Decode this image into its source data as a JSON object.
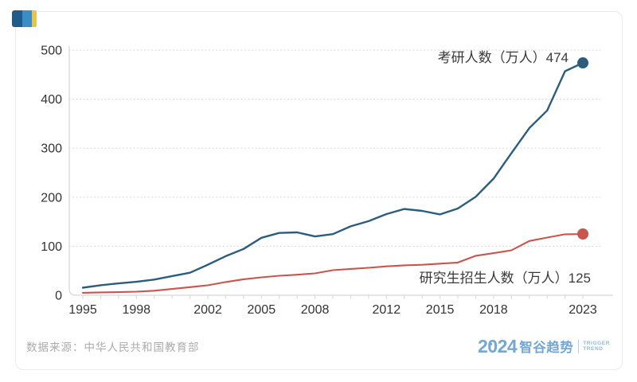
{
  "logo": {
    "square_colors": [
      "#1d5c8d",
      "#3b8ec5",
      "#e6c44c"
    ]
  },
  "chart_data": {
    "type": "line",
    "title": "",
    "xlabel": "",
    "ylabel": "",
    "ylim": [
      0,
      500
    ],
    "grid": "horizontal-dotted",
    "legend_position": "inline-annotations",
    "x": [
      1995,
      1996,
      1997,
      1998,
      1999,
      2000,
      2001,
      2002,
      2003,
      2004,
      2005,
      2006,
      2007,
      2008,
      2009,
      2010,
      2011,
      2012,
      2013,
      2014,
      2015,
      2016,
      2017,
      2018,
      2019,
      2020,
      2021,
      2022,
      2023
    ],
    "x_tick_labels": [
      "1995",
      "1998",
      "2002",
      "2005",
      "2008",
      "2012",
      "2015",
      "2018",
      "2023"
    ],
    "y_ticks": [
      0,
      100,
      200,
      300,
      400,
      500
    ],
    "series": [
      {
        "name": "考研人数（万人）",
        "color": "#2c5d7d",
        "annotation": "考研人数（万人）474",
        "end_value": 474,
        "values": [
          15.5,
          20.4,
          24.2,
          27.4,
          31.9,
          39.2,
          46,
          62.4,
          79.7,
          94.5,
          117.2,
          127.1,
          128.2,
          120,
          124.6,
          140.6,
          151.1,
          165.6,
          176,
          172,
          164.9,
          177,
          201,
          238,
          290,
          341,
          377,
          457,
          474
        ]
      },
      {
        "name": "研究生招生人数（万人）",
        "color": "#c8554e",
        "annotation": "研究生招生人数（万人）125",
        "end_value": 125,
        "values": [
          5.1,
          5.9,
          6.4,
          7.3,
          9.2,
          12.8,
          16.5,
          20.3,
          26.9,
          32.6,
          36.5,
          39.8,
          41.9,
          44.6,
          51.1,
          53.8,
          56,
          59,
          61.1,
          62.1,
          64.5,
          66.7,
          80.6,
          85.8,
          91.7,
          110.7,
          117.7,
          124.3,
          125
        ]
      }
    ]
  },
  "footer": {
    "source": "数据来源：中华人民共和国教育部"
  },
  "brand": {
    "year": "2024",
    "name": "智谷趋势",
    "tagline_line1": "TRIGGER",
    "tagline_line2": "TREND",
    "color": "#74a8d4"
  }
}
